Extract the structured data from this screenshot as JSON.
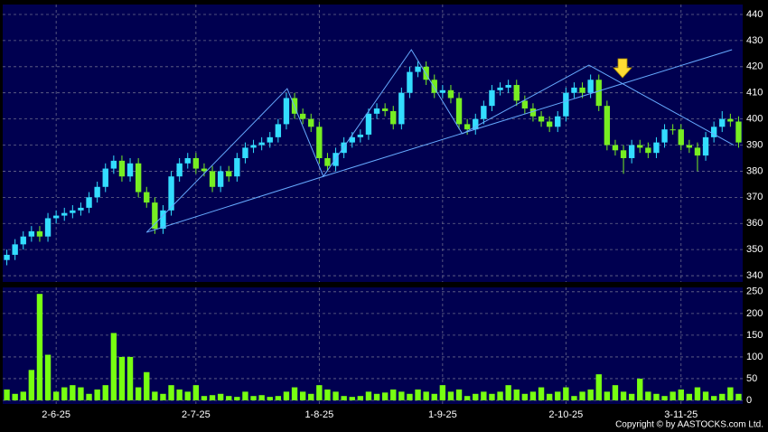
{
  "chart_data": {
    "type": "candlestick",
    "categories": [
      null,
      null,
      null,
      null,
      null,
      null,
      "2-6-25",
      null,
      null,
      null,
      null,
      null,
      null,
      null,
      null,
      null,
      null,
      null,
      null,
      null,
      null,
      null,
      null,
      "2-7-25",
      null,
      null,
      null,
      null,
      null,
      null,
      null,
      null,
      null,
      null,
      null,
      null,
      null,
      null,
      "1-8-25",
      null,
      null,
      null,
      null,
      null,
      null,
      null,
      null,
      null,
      null,
      null,
      null,
      null,
      null,
      "1-9-25",
      null,
      null,
      null,
      null,
      null,
      null,
      null,
      null,
      null,
      null,
      null,
      null,
      null,
      null,
      "2-10-25",
      null,
      null,
      null,
      null,
      null,
      null,
      null,
      null,
      null,
      null,
      null,
      null,
      null,
      "3-11-25",
      null,
      null,
      null,
      null,
      null,
      null,
      null
    ],
    "open": [
      346,
      348,
      352,
      355,
      357,
      355,
      362,
      363,
      364,
      365,
      366,
      370,
      374,
      381,
      384,
      378,
      383,
      372,
      368,
      358,
      365,
      378,
      383,
      385,
      381,
      380,
      374,
      380,
      378,
      385,
      389,
      390,
      391,
      393,
      398,
      408,
      402,
      400,
      397,
      385,
      382,
      387,
      391,
      393,
      394,
      402,
      404,
      403,
      398,
      410,
      418,
      420,
      415,
      410,
      411,
      408,
      398,
      396,
      400,
      405,
      411,
      412,
      413,
      407,
      404,
      401,
      399,
      397,
      401,
      410,
      412,
      410,
      415,
      405,
      390,
      388,
      385,
      390,
      389,
      387,
      391,
      396,
      396,
      390,
      389,
      386,
      393,
      397,
      400,
      399
    ],
    "high": [
      350,
      354,
      357,
      359,
      359,
      364,
      365,
      366,
      367,
      368,
      372,
      376,
      383,
      386,
      386,
      385,
      385,
      374,
      370,
      367,
      380,
      385,
      387,
      387,
      383,
      382,
      382,
      382,
      387,
      391,
      392,
      393,
      395,
      400,
      410,
      410,
      404,
      402,
      399,
      387,
      389,
      393,
      395,
      396,
      404,
      406,
      406,
      405,
      412,
      420,
      422,
      422,
      417,
      413,
      413,
      410,
      400,
      402,
      407,
      413,
      414,
      415,
      415,
      409,
      406,
      403,
      401,
      403,
      412,
      414,
      414,
      417,
      417,
      407,
      392,
      390,
      392,
      392,
      391,
      393,
      398,
      398,
      398,
      392,
      391,
      395,
      399,
      403,
      402,
      401
    ],
    "low": [
      344,
      346,
      350,
      353,
      353,
      353,
      360,
      361,
      362,
      363,
      364,
      368,
      372,
      379,
      376,
      376,
      370,
      366,
      356,
      356,
      363,
      376,
      381,
      379,
      378,
      372,
      372,
      376,
      376,
      383,
      387,
      388,
      389,
      391,
      396,
      400,
      398,
      395,
      383,
      380,
      380,
      385,
      389,
      391,
      392,
      400,
      401,
      396,
      396,
      408,
      416,
      413,
      408,
      408,
      406,
      396,
      394,
      394,
      398,
      403,
      409,
      410,
      405,
      402,
      399,
      397,
      395,
      395,
      399,
      408,
      408,
      408,
      403,
      388,
      386,
      379,
      383,
      387,
      385,
      385,
      389,
      394,
      388,
      387,
      380,
      384,
      391,
      395,
      397,
      389
    ],
    "close": [
      348,
      352,
      355,
      357,
      355,
      362,
      363,
      364,
      365,
      366,
      370,
      374,
      381,
      384,
      378,
      383,
      372,
      368,
      358,
      365,
      378,
      383,
      385,
      381,
      380,
      374,
      380,
      378,
      385,
      389,
      390,
      391,
      393,
      398,
      408,
      402,
      400,
      397,
      385,
      382,
      387,
      391,
      393,
      394,
      402,
      404,
      403,
      398,
      410,
      418,
      420,
      415,
      410,
      411,
      408,
      398,
      396,
      400,
      405,
      411,
      412,
      413,
      407,
      404,
      401,
      399,
      397,
      401,
      410,
      412,
      410,
      415,
      405,
      390,
      388,
      385,
      390,
      389,
      387,
      391,
      396,
      396,
      390,
      389,
      386,
      393,
      397,
      400,
      399,
      391
    ],
    "volume": [
      25,
      15,
      20,
      70,
      245,
      105,
      20,
      30,
      35,
      30,
      15,
      25,
      35,
      155,
      100,
      100,
      30,
      65,
      20,
      15,
      35,
      25,
      20,
      35,
      10,
      12,
      15,
      10,
      8,
      20,
      10,
      12,
      8,
      10,
      20,
      30,
      20,
      15,
      35,
      25,
      20,
      10,
      8,
      10,
      20,
      15,
      18,
      25,
      20,
      15,
      25,
      20,
      15,
      35,
      20,
      25,
      10,
      15,
      20,
      15,
      20,
      35,
      25,
      15,
      20,
      30,
      15,
      20,
      30,
      10,
      20,
      25,
      60,
      20,
      35,
      20,
      15,
      50,
      20,
      15,
      10,
      20,
      25,
      15,
      30,
      20,
      10,
      15,
      30,
      15
    ],
    "up_color": "#33ddff",
    "down_color": "#77ee22",
    "volume_color": "#77ff11",
    "line_color": "#66aaff",
    "ylim": [
      337.6,
      443.8
    ],
    "yticks": [
      340,
      350,
      360,
      370,
      380,
      390,
      400,
      410,
      420,
      430,
      440
    ],
    "volume_ylim": [
      0,
      260
    ],
    "volume_yticks": [
      0,
      50,
      100,
      150,
      200,
      250
    ],
    "grid": true,
    "trendlines": [
      {
        "x": [
          17,
          34.1,
          38.5,
          49.2,
          55.4
        ],
        "y": [
          356.6,
          411.6,
          378,
          426.5,
          394.3
        ]
      },
      {
        "x": [
          17,
          38.5,
          88.2
        ],
        "y": [
          356.6,
          378,
          426.5
        ]
      },
      {
        "x": [
          55.4,
          70.8,
          88.4
        ],
        "y": [
          394.3,
          420.6,
          390
        ]
      }
    ],
    "copyright": "Copyright © by AASTOCKS.com Ltd."
  }
}
